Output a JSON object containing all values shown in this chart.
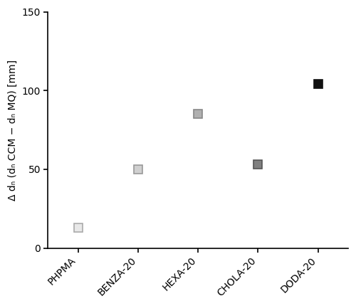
{
  "categories": [
    "PHPMA",
    "BENZA-20",
    "HEXA-20",
    "CHOLA-20",
    "DODA-20"
  ],
  "values": [
    13,
    50,
    85,
    53,
    104
  ],
  "marker_facecolors": [
    "#e8e8e8",
    "#d0d0d0",
    "#b0b0b0",
    "#808080",
    "#111111"
  ],
  "marker_edgecolors": [
    "#aaaaaa",
    "#999999",
    "#888888",
    "#555555",
    "#111111"
  ],
  "ylabel": "Δ dₙ (dₙ CCM − dₙ MQ) [mm]",
  "ylim": [
    0,
    150
  ],
  "yticks": [
    0,
    50,
    100,
    150
  ],
  "background_color": "#ffffff",
  "marker_size": 9,
  "marker_edge_width": 1.2,
  "tick_label_fontsize": 10,
  "ylabel_fontsize": 10,
  "figsize": [
    5.0,
    4.3
  ],
  "dpi": 100
}
